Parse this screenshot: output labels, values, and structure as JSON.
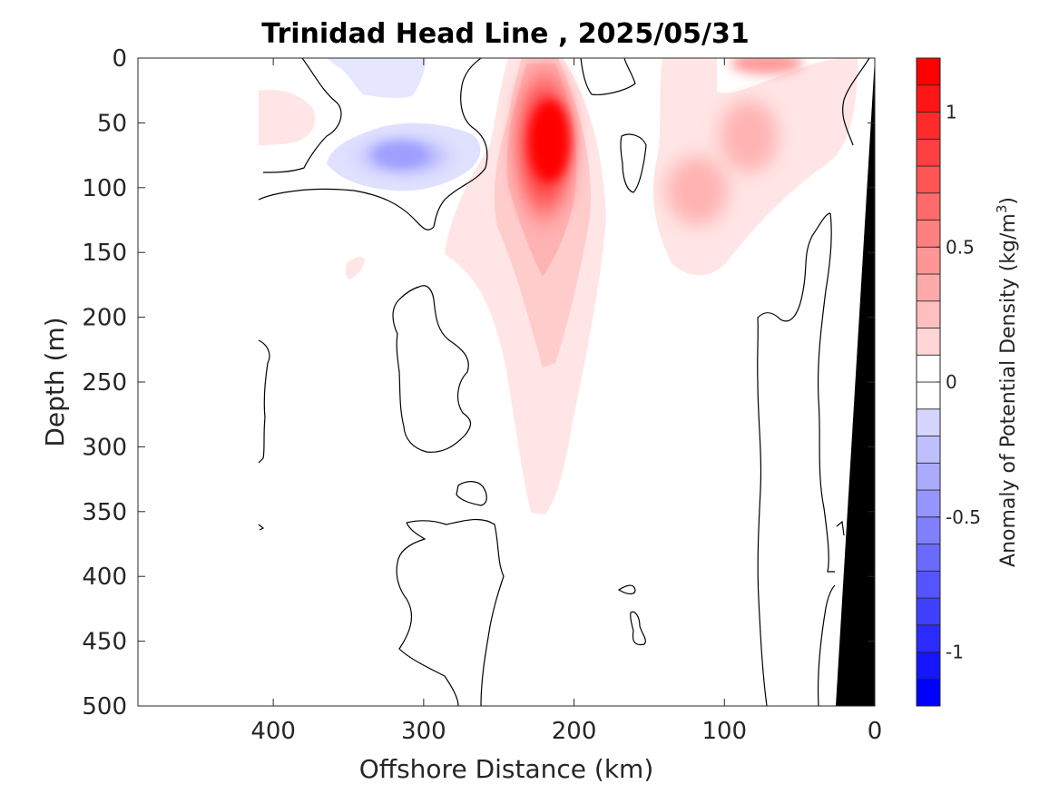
{
  "chart_data": {
    "type": "heatmap",
    "title": "Trinidad Head Line , 2025/05/31",
    "xlabel": "Offshore Distance (km)",
    "ylabel": "Depth (m)",
    "colorbar_label": "Anomaly of Potential Density (kg/m",
    "colorbar_label_sup": "3",
    "colorbar_label_end": ")",
    "xlim": [
      490,
      0
    ],
    "ylim": [
      500,
      0
    ],
    "x_reversed": true,
    "y_reversed": true,
    "x_ticks": [
      400,
      300,
      200,
      100,
      0
    ],
    "x_tick_labels": [
      "400",
      "300",
      "200",
      "100",
      "0"
    ],
    "y_ticks": [
      0,
      50,
      100,
      150,
      200,
      250,
      300,
      350,
      400,
      450,
      500
    ],
    "y_tick_labels": [
      "0",
      "50",
      "100",
      "150",
      "200",
      "250",
      "300",
      "350",
      "400",
      "450",
      "500"
    ],
    "color_range": [
      -1.2,
      1.2
    ],
    "contour_levels": [
      -1.2,
      -1.1,
      -1.0,
      -0.9,
      -0.8,
      -0.7,
      -0.6,
      -0.5,
      -0.4,
      -0.3,
      -0.2,
      -0.1,
      0,
      0.1,
      0.2,
      0.3,
      0.4,
      0.5,
      0.6,
      0.7,
      0.8,
      0.9,
      1.0,
      1.1,
      1.2
    ],
    "colorbar_ticks": [
      1,
      0.5,
      0,
      -0.5,
      -1
    ],
    "colorbar_tick_labels": [
      "1",
      "0.5",
      "0",
      "-0.5",
      "-1"
    ],
    "colormap": {
      "negative": "#0000ff",
      "zero": "#ffffff",
      "positive": "#ff0000"
    },
    "bathymetry_color": "#000000",
    "features": [
      {
        "kind": "positive_core",
        "x_km": 220,
        "depth_m": 70,
        "value": 1.1
      },
      {
        "kind": "positive_tongue",
        "x_km": 218,
        "depth_m_range": [
          20,
          350
        ],
        "value": 0.15
      },
      {
        "kind": "negative_core",
        "x_km": 305,
        "depth_m": 78,
        "value": -0.45
      },
      {
        "kind": "negative_patch",
        "x_km": 330,
        "depth_m": 15,
        "value": -0.15
      },
      {
        "kind": "positive_patch",
        "x_km": 115,
        "depth_m": 95,
        "value": 0.35
      },
      {
        "kind": "positive_patch",
        "x_km": 70,
        "depth_m": 60,
        "value": 0.3
      },
      {
        "kind": "positive_patch",
        "x_km": 75,
        "depth_m": 5,
        "value": 0.35
      },
      {
        "kind": "positive_patch",
        "x_km": 390,
        "depth_m": 45,
        "value": 0.15
      }
    ],
    "bathymetry": {
      "depth_m": [
        0,
        500
      ],
      "x_km_at_depth": [
        0,
        25
      ]
    }
  }
}
